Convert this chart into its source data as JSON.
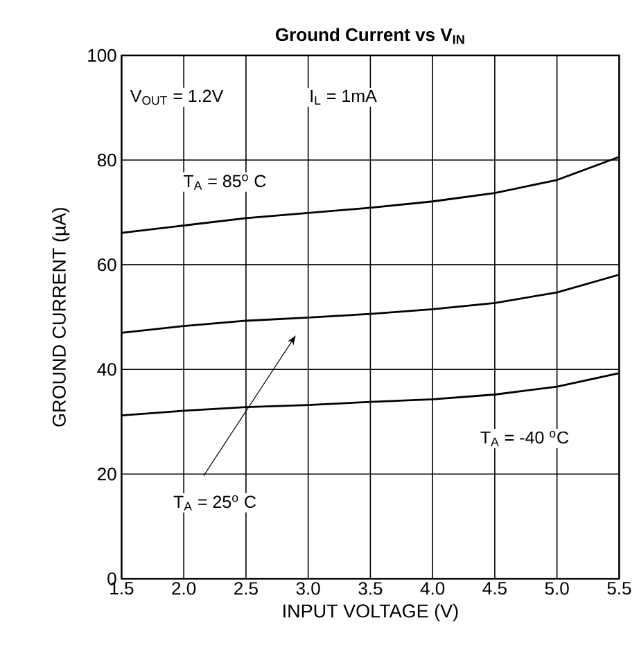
{
  "chart_data": {
    "type": "line",
    "title": "Ground Current vs V$_{IN}$",
    "xlabel": "INPUT VOLTAGE (V)",
    "ylabel": "GROUND CURRENT (µA)",
    "x": [
      1.5,
      2.0,
      2.5,
      3.0,
      3.5,
      4.0,
      4.5,
      5.0,
      5.5
    ],
    "series": [
      {
        "color": "#000000",
        "values": [
          66.1,
          67.5,
          68.9,
          69.9,
          70.9,
          72.1,
          73.7,
          76.2,
          80.6
        ]
      },
      {
        "color": "#000000",
        "values": [
          47.0,
          48.3,
          49.3,
          49.9,
          50.6,
          51.5,
          52.7,
          54.7,
          58.1
        ]
      },
      {
        "color": "#000000",
        "values": [
          31.2,
          32.1,
          32.8,
          33.2,
          33.8,
          34.3,
          35.2,
          36.7,
          39.3
        ]
      }
    ],
    "xlim": [
      1.5,
      5.5
    ],
    "ylim": [
      0,
      100
    ],
    "xticks": [
      1.5,
      {
        "value": 2,
        "label": "2.0"
      },
      2.5,
      {
        "value": 3,
        "label": "3.0"
      },
      3.5,
      {
        "value": 4,
        "label": "4.0"
      },
      4.5,
      {
        "value": 5,
        "label": "5.0"
      },
      5.5
    ],
    "yticks": [
      0,
      20,
      40,
      60,
      80,
      100
    ],
    "grid": true,
    "annotations": [
      "V$_{OUT}$ = 1.2V",
      "I$_{L}$ = 1mA",
      "T$_{A}$ = 85$^{o}$ C",
      "T$_{A}$ = -40 $^{o}$C",
      "T$_{A}$ = 25$^{o}$ C"
    ]
  }
}
